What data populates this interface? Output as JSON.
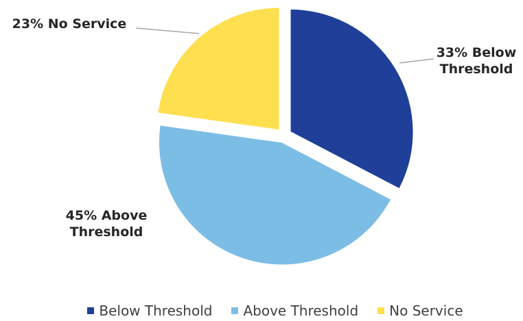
{
  "chart_data": {
    "type": "pie",
    "title": "",
    "categories": [
      "Below Threshold",
      "Above Threshold",
      "No Service"
    ],
    "values": [
      33,
      45,
      23
    ],
    "unit": "%",
    "colors": [
      "#1f3f99",
      "#7cbde6",
      "#fddf4f"
    ],
    "data_labels": [
      {
        "lines": [
          "33% Below",
          "Threshold"
        ]
      },
      {
        "lines": [
          "45% Above",
          "Threshold"
        ]
      },
      {
        "lines": [
          "23% No Service"
        ]
      }
    ],
    "legend": {
      "position": "bottom",
      "entries": [
        "Below Threshold",
        "Above Threshold",
        "No Service"
      ]
    },
    "exploded": true
  }
}
